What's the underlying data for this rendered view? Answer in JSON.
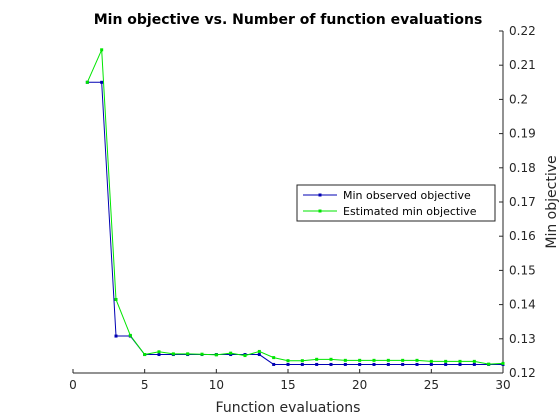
{
  "chart_data": {
    "type": "line",
    "title": "Min objective vs. Number of function evaluations",
    "xlabel": "Function evaluations",
    "ylabel": "Min objective",
    "xlim": [
      0,
      30
    ],
    "ylim": [
      0.12,
      0.22
    ],
    "xticks": [
      0,
      5,
      10,
      15,
      20,
      25,
      30
    ],
    "yticks": [
      0.12,
      0.13,
      0.14,
      0.15,
      0.16,
      0.17,
      0.18,
      0.19,
      0.2,
      0.21,
      0.22
    ],
    "ytick_labels": [
      "0.12",
      "0.13",
      "0.14",
      "0.15",
      "0.16",
      "0.17",
      "0.18",
      "0.19",
      "0.2",
      "0.21",
      "0.22"
    ],
    "y_axis_side": "right",
    "grid": false,
    "legend_position": "right-center",
    "x": [
      1,
      2,
      3,
      4,
      5,
      6,
      7,
      8,
      9,
      10,
      11,
      12,
      13,
      14,
      15,
      16,
      17,
      18,
      19,
      20,
      21,
      22,
      23,
      24,
      25,
      26,
      27,
      28,
      29,
      30
    ],
    "series": [
      {
        "name": "Min observed objective",
        "color": "#0000b3",
        "values": [
          0.205,
          0.205,
          0.1308,
          0.1308,
          0.1254,
          0.1254,
          0.1254,
          0.1254,
          0.1254,
          0.1254,
          0.1254,
          0.1254,
          0.1254,
          0.1225,
          0.1225,
          0.1225,
          0.1225,
          0.1225,
          0.1225,
          0.1225,
          0.1225,
          0.1225,
          0.1225,
          0.1225,
          0.1225,
          0.1225,
          0.1225,
          0.1225,
          0.1225,
          0.1225
        ]
      },
      {
        "name": "Estimated min objective",
        "color": "#00e600",
        "values": [
          0.205,
          0.2145,
          0.1415,
          0.131,
          0.1254,
          0.1262,
          0.1256,
          0.1256,
          0.1255,
          0.1253,
          0.1258,
          0.1251,
          0.1263,
          0.1245,
          0.1236,
          0.1236,
          0.124,
          0.124,
          0.1237,
          0.1237,
          0.1237,
          0.1237,
          0.1237,
          0.1237,
          0.1234,
          0.1234,
          0.1234,
          0.1234,
          0.1226,
          0.1228
        ]
      }
    ]
  }
}
